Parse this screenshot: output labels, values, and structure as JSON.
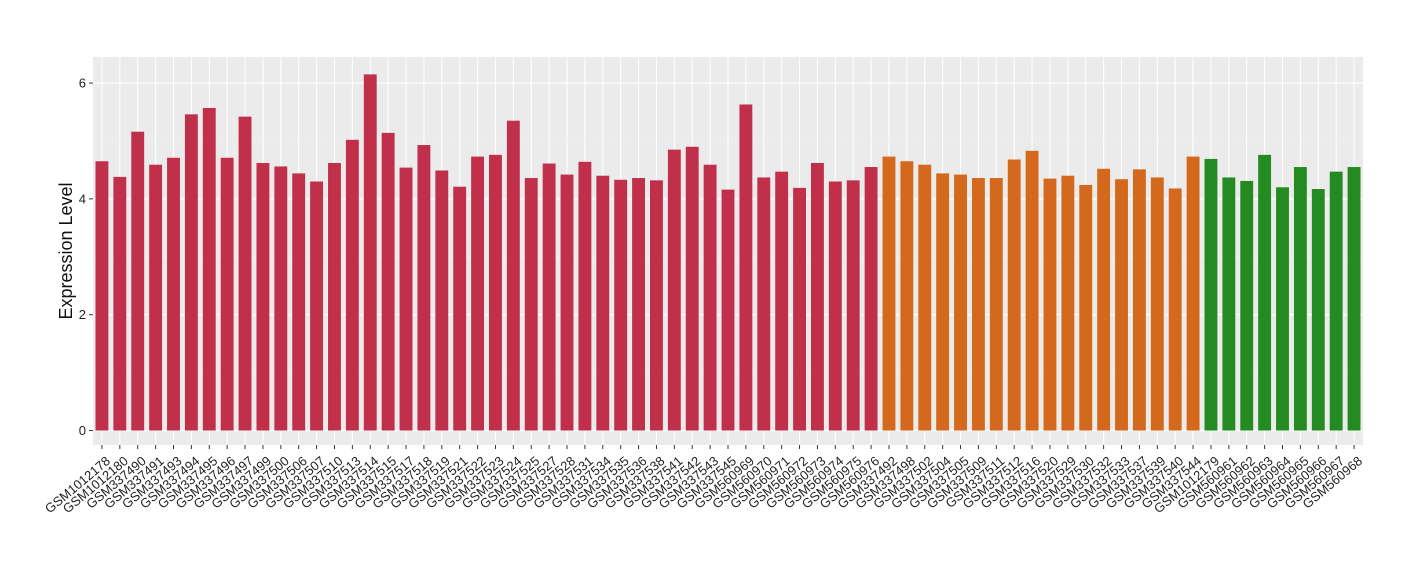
{
  "chart_data": {
    "type": "bar",
    "title": "",
    "xlabel": "",
    "ylabel": "Expression Level",
    "ylim": [
      -0.25,
      6.45
    ],
    "yticks": [
      0,
      2,
      4,
      6
    ],
    "grid": true,
    "legend": "none",
    "background": "#ebebeb",
    "categories": [
      "GSM1012178",
      "GSM1012180",
      "GSM337490",
      "GSM337491",
      "GSM337493",
      "GSM337494",
      "GSM337495",
      "GSM337496",
      "GSM337497",
      "GSM337499",
      "GSM337500",
      "GSM337506",
      "GSM337507",
      "GSM337510",
      "GSM337513",
      "GSM337514",
      "GSM337515",
      "GSM337517",
      "GSM337518",
      "GSM337519",
      "GSM337521",
      "GSM337522",
      "GSM337523",
      "GSM337524",
      "GSM337525",
      "GSM337527",
      "GSM337528",
      "GSM337531",
      "GSM337534",
      "GSM337535",
      "GSM337536",
      "GSM337538",
      "GSM337541",
      "GSM337542",
      "GSM337543",
      "GSM337545",
      "GSM560969",
      "GSM560970",
      "GSM560971",
      "GSM560972",
      "GSM560973",
      "GSM560974",
      "GSM560975",
      "GSM560976",
      "GSM337492",
      "GSM337498",
      "GSM337502",
      "GSM337504",
      "GSM337505",
      "GSM337509",
      "GSM337511",
      "GSM337512",
      "GSM337516",
      "GSM337520",
      "GSM337529",
      "GSM337530",
      "GSM337532",
      "GSM337533",
      "GSM337537",
      "GSM337539",
      "GSM337540",
      "GSM337544",
      "GSM1012179",
      "GSM560961",
      "GSM560962",
      "GSM560963",
      "GSM560964",
      "GSM560965",
      "GSM560966",
      "GSM560967",
      "GSM560968"
    ],
    "values": [
      4.65,
      4.38,
      5.16,
      4.59,
      4.71,
      5.46,
      5.57,
      4.71,
      5.42,
      4.62,
      4.56,
      4.44,
      4.3,
      4.62,
      5.02,
      6.15,
      5.14,
      4.54,
      4.93,
      4.49,
      4.21,
      4.73,
      4.76,
      5.35,
      4.36,
      4.61,
      4.42,
      4.64,
      4.4,
      4.33,
      4.36,
      4.32,
      4.85,
      4.9,
      4.59,
      4.16,
      5.63,
      4.37,
      4.47,
      4.19,
      4.62,
      4.3,
      4.32,
      4.55,
      4.73,
      4.65,
      4.59,
      4.44,
      4.42,
      4.36,
      4.36,
      4.68,
      4.83,
      4.35,
      4.4,
      4.24,
      4.52,
      4.34,
      4.51,
      4.37,
      4.18,
      4.73,
      4.69,
      4.37,
      4.31,
      4.76,
      4.2,
      4.55,
      4.17,
      4.47,
      4.55
    ],
    "groups": [
      {
        "count": 44,
        "color": "#c0304a"
      },
      {
        "count": 18,
        "color": "#d4691e"
      },
      {
        "count": 9,
        "color": "#238b21"
      }
    ]
  }
}
